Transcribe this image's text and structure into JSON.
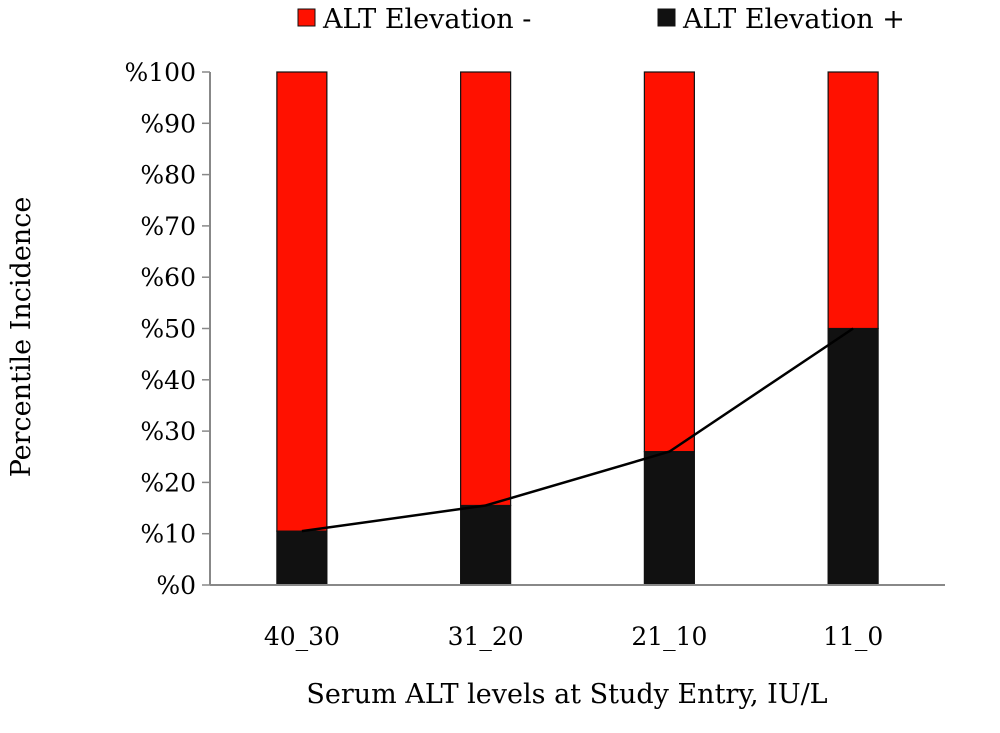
{
  "chart_data": {
    "type": "bar",
    "stacked": true,
    "categories": [
      "40_30",
      "31_20",
      "21_10",
      "11_0"
    ],
    "series": [
      {
        "name": "ALT Elevation +",
        "color": "#111111",
        "values": [
          10.5,
          15.5,
          26,
          50
        ]
      },
      {
        "name": "ALT Elevation -",
        "color": "#ff1100",
        "values": [
          89.5,
          84.5,
          74,
          50
        ]
      }
    ],
    "trend_line": {
      "series": "ALT Elevation +",
      "values": [
        10.5,
        15.5,
        26,
        50
      ]
    },
    "xlabel": "Serum ALT levels at Study Entry, IU/L",
    "ylabel": "Percentile Incidence",
    "ylim": [
      0,
      100
    ],
    "yticks": [
      "%0",
      "%10",
      "%20",
      "%30",
      "%40",
      "%50",
      "%60",
      "%70",
      "%80",
      "%90",
      "%100"
    ],
    "legend_position": "top",
    "legend": [
      "ALT Elevation -",
      "ALT Elevation +"
    ],
    "grid": false
  }
}
